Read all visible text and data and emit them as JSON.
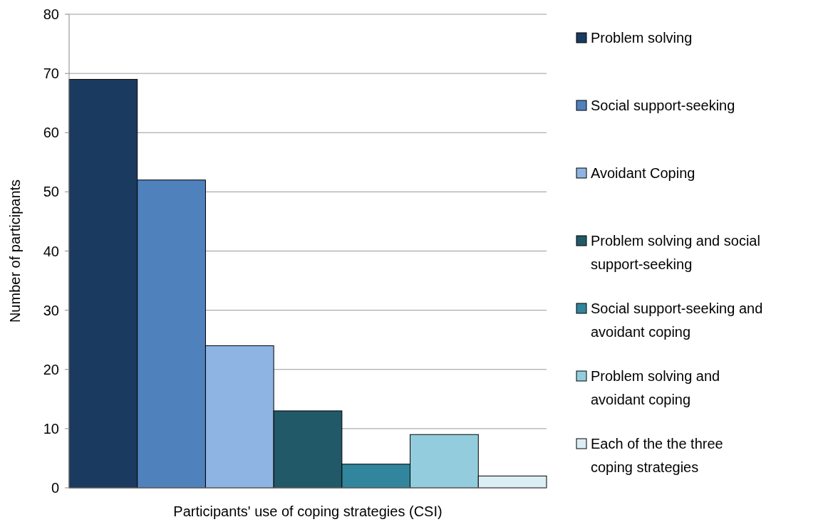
{
  "chart_data": {
    "type": "bar",
    "xlabel": "Participants' use of coping strategies (CSI)",
    "ylabel": "Number of participants",
    "categories": [
      null
    ],
    "series": [
      {
        "name": "Problem solving",
        "color": "#1b3a5f",
        "values": [
          69
        ]
      },
      {
        "name": "Social support-seeking",
        "color": "#4f81bd",
        "values": [
          52
        ]
      },
      {
        "name": "Avoidant Coping",
        "color": "#8eb4e3",
        "values": [
          24
        ]
      },
      {
        "name": "Problem solving and social support-seeking",
        "color": "#215968",
        "values": [
          13
        ]
      },
      {
        "name": "Social support-seeking and avoidant coping",
        "color": "#31859c",
        "values": [
          4
        ]
      },
      {
        "name": "Problem solving and avoidant coping",
        "color": "#93cddd",
        "values": [
          9
        ]
      },
      {
        "name": "Each of the the three coping strategies",
        "color": "#dbeef4",
        "values": [
          2
        ]
      }
    ],
    "ylim": [
      0,
      80
    ],
    "yticks": [
      0,
      10,
      20,
      30,
      40,
      50,
      60,
      70,
      80
    ],
    "grid": "y",
    "legend": "right"
  }
}
